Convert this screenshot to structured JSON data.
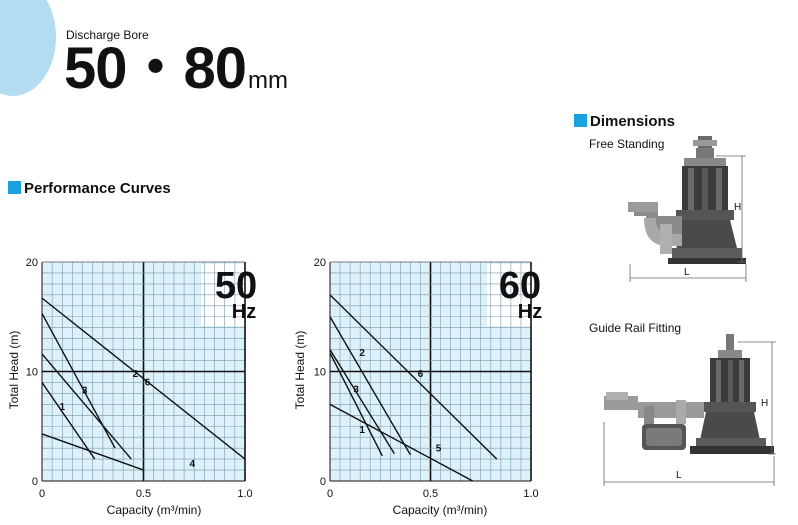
{
  "header": {
    "subtitle": "Discharge Bore",
    "title_main": "50・80",
    "title_unit": "mm"
  },
  "sections": {
    "performance": "Performance Curves",
    "dimensions": "Dimensions"
  },
  "dimensions": {
    "free_standing_label": "Free Standing",
    "guide_rail_label": "Guide Rail Fitting",
    "dim_h": "H",
    "dim_l": "L"
  },
  "colors": {
    "accent": "#1aa1e0",
    "header_circle": "#b3dcf0",
    "plot_bg": "#ddf1fa",
    "grid": "#7a9aaa"
  },
  "chart_data": [
    {
      "type": "line",
      "frequency_big": "50",
      "frequency_unit": "Hz",
      "xlabel": "Capacity (m³/min)",
      "ylabel": "Total Head (m)",
      "xlim": [
        0,
        1.0
      ],
      "ylim": [
        0,
        20
      ],
      "x_ticks": [
        "0",
        "0.5",
        "1.0"
      ],
      "y_ticks": [
        "0",
        "10",
        "20"
      ],
      "series": [
        {
          "name": "1",
          "x": [
            0,
            0.26
          ],
          "y": [
            9.0,
            2.0
          ]
        },
        {
          "name": "2",
          "x": [
            0,
            0.36
          ],
          "y": [
            15.3,
            3.0
          ]
        },
        {
          "name": "3",
          "x": [
            0,
            0.44
          ],
          "y": [
            11.6,
            2.0
          ]
        },
        {
          "name": "4",
          "x": [
            0,
            0.5
          ],
          "y": [
            4.3,
            1.0
          ]
        },
        {
          "name": "6",
          "x": [
            0,
            1.0
          ],
          "y": [
            16.7,
            2.0
          ]
        }
      ]
    },
    {
      "type": "line",
      "frequency_big": "60",
      "frequency_unit": "Hz",
      "xlabel": "Capacity (m³/min)",
      "ylabel": "Total Head (m)",
      "xlim": [
        0,
        1.0
      ],
      "ylim": [
        0,
        20
      ],
      "x_ticks": [
        "0",
        "0.5",
        "1.0"
      ],
      "y_ticks": [
        "0",
        "10",
        "20"
      ],
      "series": [
        {
          "name": "1",
          "x": [
            0,
            0.26
          ],
          "y": [
            11.7,
            2.3
          ]
        },
        {
          "name": "2",
          "x": [
            0,
            0.4
          ],
          "y": [
            15.0,
            2.4
          ]
        },
        {
          "name": "3",
          "x": [
            0,
            0.32
          ],
          "y": [
            12.0,
            2.5
          ]
        },
        {
          "name": "5",
          "x": [
            0,
            0.71
          ],
          "y": [
            7.0,
            0.0
          ]
        },
        {
          "name": "6",
          "x": [
            0,
            0.83
          ],
          "y": [
            17.0,
            2.0
          ]
        }
      ]
    }
  ]
}
